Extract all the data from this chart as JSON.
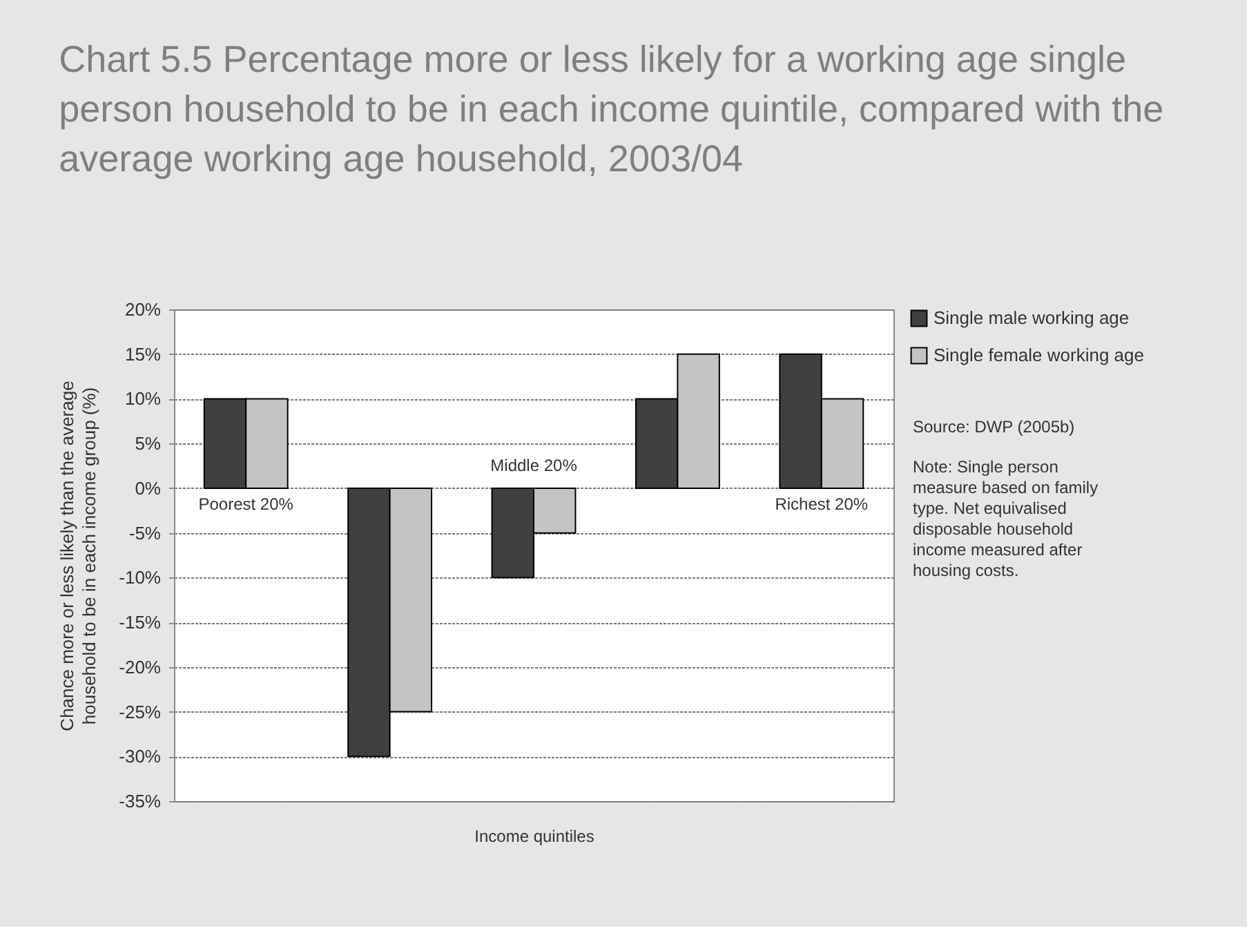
{
  "chart_data": {
    "type": "bar",
    "title": "Chart 5.5 Percentage more or less likely for a working age single person household to be in each income quintile, compared with the average working age household, 2003/04",
    "xlabel": "Income quintiles",
    "ylabel": "Chance more or less likely than the average household to be in each income group (%)",
    "categories": [
      "Poorest 20%",
      null,
      "Middle 20%",
      null,
      "Richest 20%"
    ],
    "series": [
      {
        "name": "Single male working age",
        "color": "#404040",
        "values": [
          10,
          -30,
          -10,
          10,
          15
        ]
      },
      {
        "name": "Single female working age",
        "color": "#c4c4c4",
        "values": [
          10,
          -25,
          -5,
          15,
          10
        ]
      }
    ],
    "ylim": [
      -35,
      20
    ],
    "yticks": [
      {
        "value": -35,
        "label": "-35%"
      },
      {
        "value": -30,
        "label": "-30%"
      },
      {
        "value": -25,
        "label": "-25%"
      },
      {
        "value": -20,
        "label": "-20%"
      },
      {
        "value": -15,
        "label": "-15%"
      },
      {
        "value": -10,
        "label": "-10%"
      },
      {
        "value": -5,
        "label": "-5%"
      },
      {
        "value": 0,
        "label": "0%"
      },
      {
        "value": 5,
        "label": "5%"
      },
      {
        "value": 10,
        "label": "10%"
      },
      {
        "value": 15,
        "label": "15%"
      },
      {
        "value": 20,
        "label": "20%"
      }
    ],
    "grid": "y",
    "legend": "right",
    "annotations": [
      "Source: DWP (2005b)",
      "Note: Single person measure based on family type. Net equivalised disposable household income measured after housing costs."
    ]
  }
}
